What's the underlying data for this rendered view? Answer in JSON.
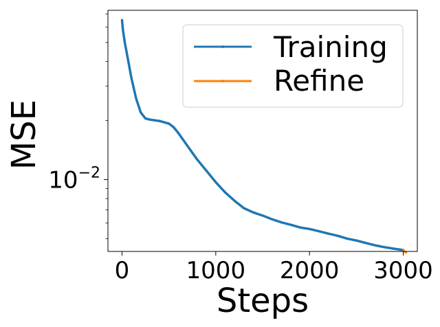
{
  "chart_data": {
    "type": "line",
    "title": "",
    "xlabel": "Steps",
    "ylabel": "MSE",
    "yscale": "log",
    "grid": false,
    "legend_position": "top-right",
    "xlim": [
      -150,
      3150
    ],
    "ylim": [
      0.0043,
      0.073
    ],
    "x_ticks": [
      {
        "value": 0,
        "label": "0"
      },
      {
        "value": 1000,
        "label": "1000"
      },
      {
        "value": 2000,
        "label": "2000"
      },
      {
        "value": 3000,
        "label": "3000"
      }
    ],
    "y_ticks": [
      {
        "value": 0.01,
        "base": "10",
        "exponent": "−2"
      }
    ],
    "series": [
      {
        "name": "Training",
        "color": "#1f77b4",
        "x": [
          0,
          10,
          30,
          60,
          100,
          150,
          200,
          250,
          300,
          400,
          500,
          550,
          600,
          700,
          800,
          900,
          1000,
          1100,
          1200,
          1300,
          1400,
          1500,
          1600,
          1700,
          1800,
          1900,
          2000,
          2100,
          2200,
          2300,
          2400,
          2500,
          2600,
          2700,
          2800,
          2900,
          3000
        ],
        "y": [
          0.065,
          0.058,
          0.05,
          0.042,
          0.033,
          0.026,
          0.022,
          0.0205,
          0.0202,
          0.0199,
          0.0193,
          0.0185,
          0.0173,
          0.0148,
          0.0127,
          0.0111,
          0.0097,
          0.0086,
          0.0078,
          0.00715,
          0.0068,
          0.00655,
          0.00628,
          0.00605,
          0.00588,
          0.0057,
          0.0056,
          0.00545,
          0.0053,
          0.00517,
          0.005,
          0.00489,
          0.00475,
          0.00462,
          0.00452,
          0.00444,
          0.00437
        ]
      },
      {
        "name": "Refine",
        "color": "#ff7f0e",
        "x": [
          3000,
          3010,
          3020,
          3030
        ],
        "y": [
          0.00436,
          0.00432,
          0.00428,
          0.00425
        ]
      }
    ]
  }
}
